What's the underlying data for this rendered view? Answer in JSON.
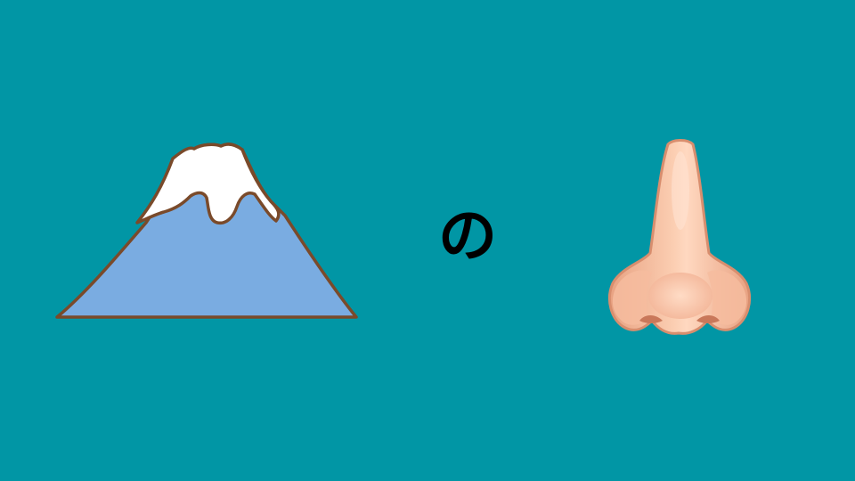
{
  "slide": {
    "background_color": "#0196A5",
    "particle": "の",
    "left_image_icon": "mount-fuji-icon",
    "right_image_icon": "nose-icon"
  }
}
